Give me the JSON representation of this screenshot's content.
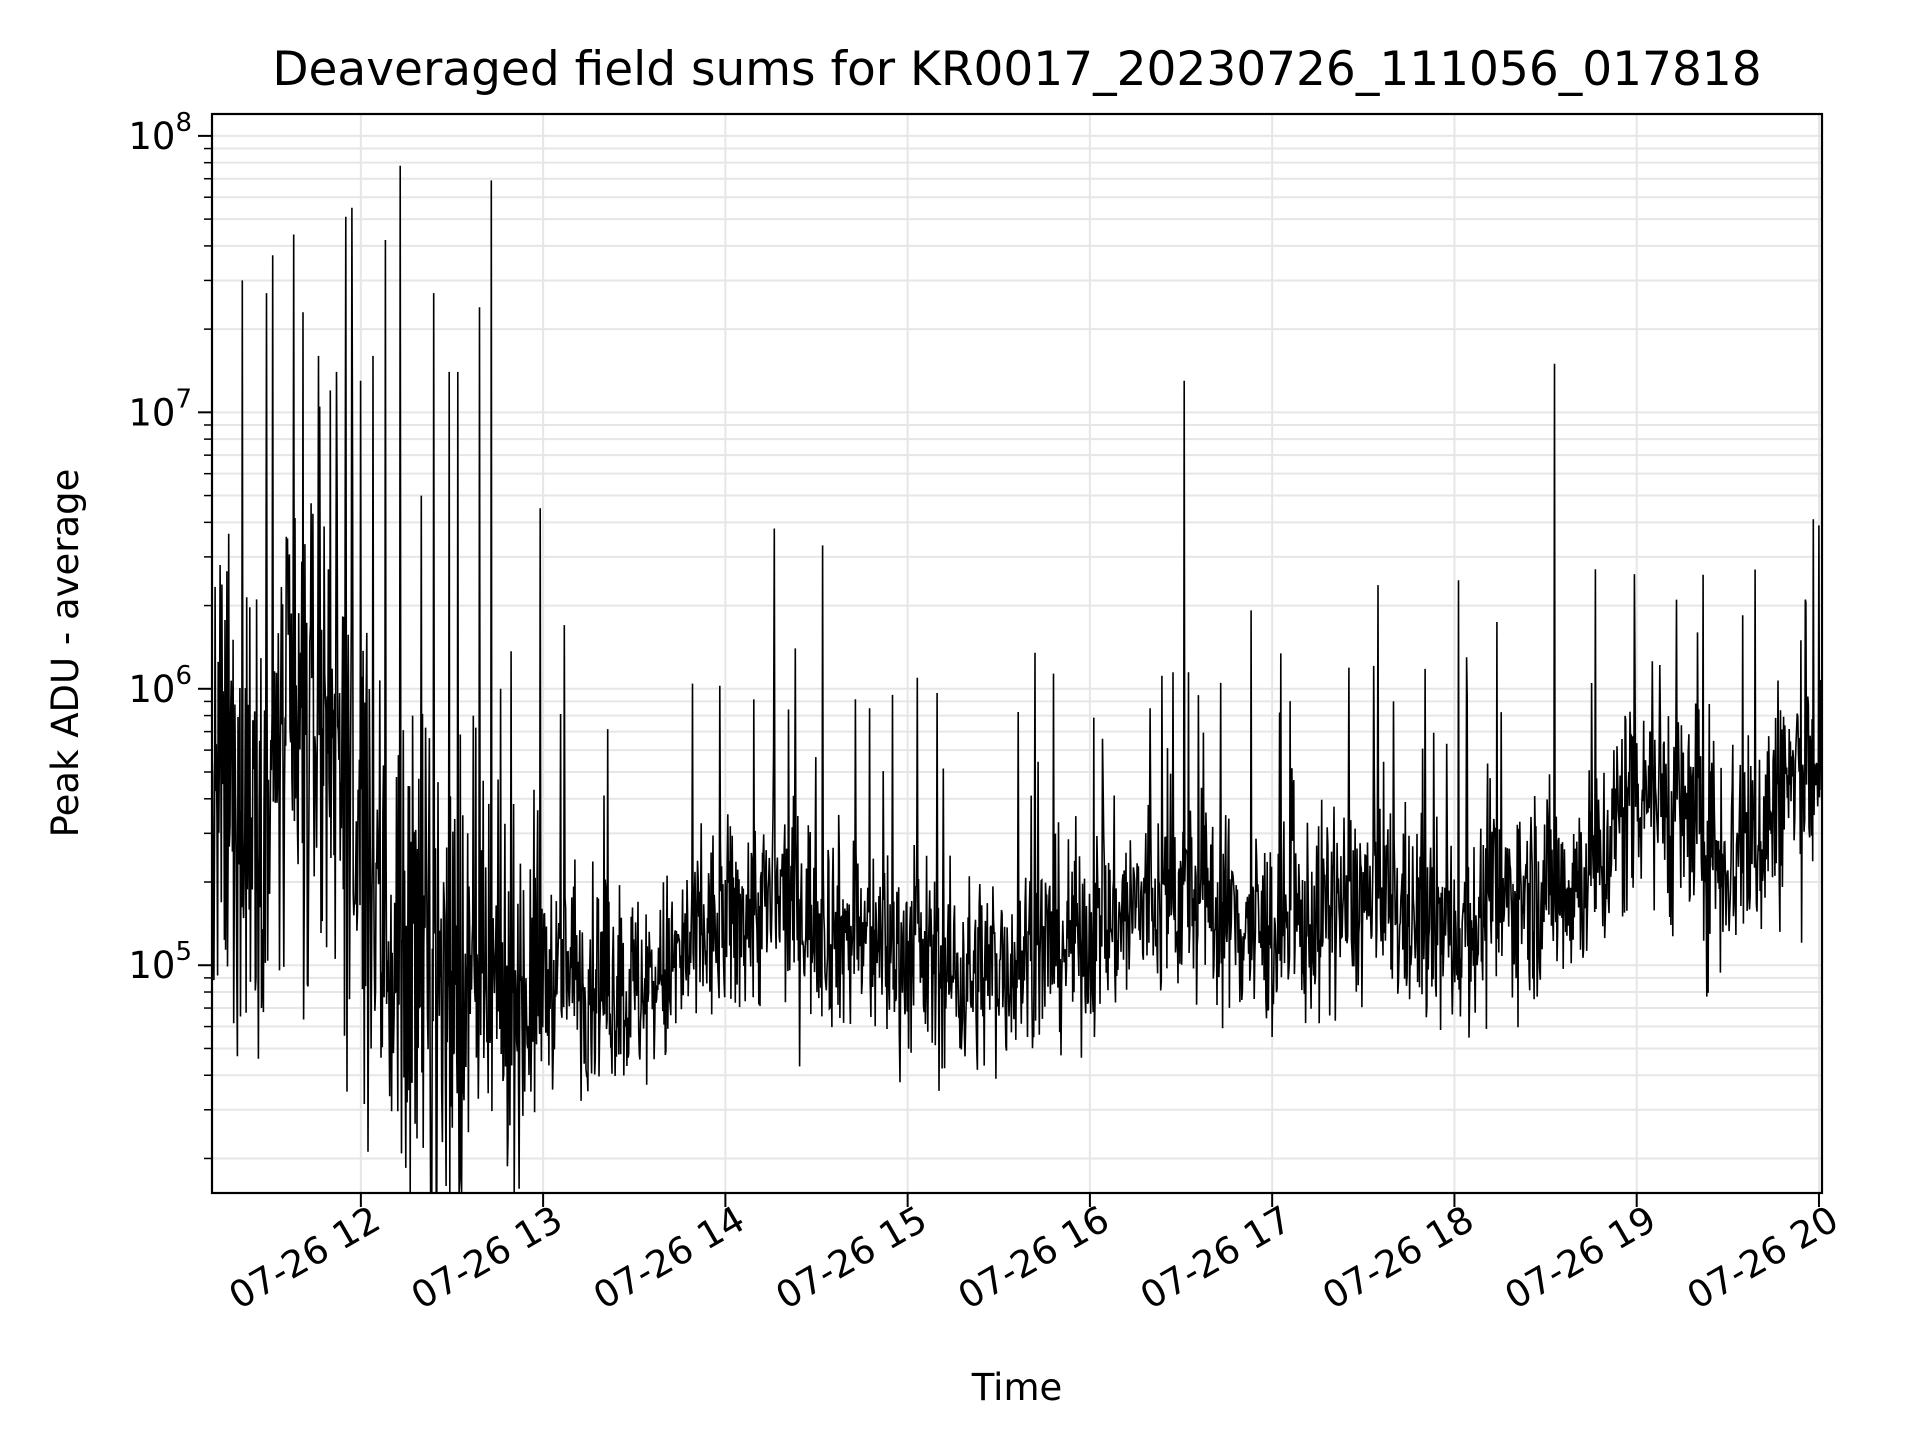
{
  "chart_data": {
    "type": "line",
    "title": "Deaveraged field sums for KR0017_20230726_111056_017818",
    "xlabel": "Time",
    "ylabel": "Peak ADU - average",
    "y_scale": "log",
    "ylim": [
      15000,
      120000000
    ],
    "xlim": [
      "2023-07-26 11:11",
      "2023-07-26 20:01"
    ],
    "grid": true,
    "line_color": "#000000",
    "grid_color": "#e6e6e6",
    "x_ticks": [
      {
        "value": "2023-07-26 12:00",
        "label": "07-26 12"
      },
      {
        "value": "2023-07-26 13:00",
        "label": "07-26 13"
      },
      {
        "value": "2023-07-26 14:00",
        "label": "07-26 14"
      },
      {
        "value": "2023-07-26 15:00",
        "label": "07-26 15"
      },
      {
        "value": "2023-07-26 16:00",
        "label": "07-26 16"
      },
      {
        "value": "2023-07-26 17:00",
        "label": "07-26 17"
      },
      {
        "value": "2023-07-26 18:00",
        "label": "07-26 18"
      },
      {
        "value": "2023-07-26 19:00",
        "label": "07-26 19"
      },
      {
        "value": "2023-07-26 20:00",
        "label": "07-26 20"
      }
    ],
    "y_ticks": [
      {
        "value": 100000,
        "base": "10",
        "exp": "5"
      },
      {
        "value": 1000000,
        "base": "10",
        "exp": "6"
      },
      {
        "value": 10000000,
        "base": "10",
        "exp": "7"
      },
      {
        "value": 100000000,
        "base": "10",
        "exp": "8"
      }
    ],
    "series": [
      {
        "x": [
          "2023-07-26 11:11",
          "2023-07-26 11:15",
          "2023-07-26 11:20",
          "2023-07-26 11:25",
          "2023-07-26 11:30",
          "2023-07-26 11:35",
          "2023-07-26 11:40",
          "2023-07-26 11:45",
          "2023-07-26 11:50",
          "2023-07-26 11:55",
          "2023-07-26 12:00",
          "2023-07-26 12:05",
          "2023-07-26 12:10",
          "2023-07-26 12:15",
          "2023-07-26 12:20",
          "2023-07-26 12:25",
          "2023-07-26 12:30",
          "2023-07-26 12:35",
          "2023-07-26 12:40",
          "2023-07-26 12:45",
          "2023-07-26 12:50",
          "2023-07-26 12:55",
          "2023-07-26 13:00",
          "2023-07-26 13:10",
          "2023-07-26 13:20",
          "2023-07-26 13:30",
          "2023-07-26 13:40",
          "2023-07-26 13:50",
          "2023-07-26 14:00",
          "2023-07-26 14:10",
          "2023-07-26 14:20",
          "2023-07-26 14:30",
          "2023-07-26 14:40",
          "2023-07-26 14:50",
          "2023-07-26 15:00",
          "2023-07-26 15:10",
          "2023-07-26 15:20",
          "2023-07-26 15:30",
          "2023-07-26 15:40",
          "2023-07-26 15:50",
          "2023-07-26 16:00",
          "2023-07-26 16:10",
          "2023-07-26 16:20",
          "2023-07-26 16:30",
          "2023-07-26 16:40",
          "2023-07-26 16:50",
          "2023-07-26 17:00",
          "2023-07-26 17:10",
          "2023-07-26 17:20",
          "2023-07-26 17:30",
          "2023-07-26 17:40",
          "2023-07-26 17:50",
          "2023-07-26 18:00",
          "2023-07-26 18:10",
          "2023-07-26 18:20",
          "2023-07-26 18:30",
          "2023-07-26 18:40",
          "2023-07-26 18:50",
          "2023-07-26 19:00",
          "2023-07-26 19:10",
          "2023-07-26 19:20",
          "2023-07-26 19:30",
          "2023-07-26 19:40",
          "2023-07-26 19:50",
          "2023-07-26 20:00"
        ],
        "y": [
          300000,
          400000,
          300000,
          500000,
          400000,
          600000,
          500000,
          700000,
          800000,
          500000,
          200000,
          150000,
          120000,
          100000,
          90000,
          80000,
          75000,
          70000,
          70000,
          75000,
          80000,
          85000,
          90000,
          90000,
          85000,
          80000,
          90000,
          120000,
          140000,
          160000,
          170000,
          150000,
          130000,
          120000,
          110000,
          100000,
          90000,
          100000,
          110000,
          120000,
          130000,
          150000,
          170000,
          180000,
          170000,
          140000,
          130000,
          140000,
          160000,
          170000,
          160000,
          140000,
          130000,
          150000,
          180000,
          190000,
          200000,
          250000,
          500000,
          400000,
          300000,
          250000,
          300000,
          450000,
          550000
        ],
        "spikes": [
          {
            "x": "2023-07-26 11:21",
            "y": 30000000
          },
          {
            "x": "2023-07-26 11:29",
            "y": 27000000
          },
          {
            "x": "2023-07-26 11:31",
            "y": 37000000
          },
          {
            "x": "2023-07-26 11:38",
            "y": 44000000
          },
          {
            "x": "2023-07-26 11:41",
            "y": 23000000
          },
          {
            "x": "2023-07-26 11:46",
            "y": 16000000
          },
          {
            "x": "2023-07-26 11:50",
            "y": 12000000
          },
          {
            "x": "2023-07-26 11:52",
            "y": 14000000
          },
          {
            "x": "2023-07-26 11:55",
            "y": 51000000
          },
          {
            "x": "2023-07-26 11:57",
            "y": 55000000
          },
          {
            "x": "2023-07-26 12:00",
            "y": 13000000
          },
          {
            "x": "2023-07-26 12:04",
            "y": 16000000
          },
          {
            "x": "2023-07-26 12:08",
            "y": 42000000
          },
          {
            "x": "2023-07-26 12:13",
            "y": 78000000
          },
          {
            "x": "2023-07-26 12:17",
            "y": 800000
          },
          {
            "x": "2023-07-26 12:20",
            "y": 5000000
          },
          {
            "x": "2023-07-26 12:24",
            "y": 27000000
          },
          {
            "x": "2023-07-26 12:29",
            "y": 14000000
          },
          {
            "x": "2023-07-26 12:32",
            "y": 14000000
          },
          {
            "x": "2023-07-26 12:37",
            "y": 800000
          },
          {
            "x": "2023-07-26 12:39",
            "y": 24000000
          },
          {
            "x": "2023-07-26 12:43",
            "y": 69000000
          },
          {
            "x": "2023-07-26 12:46",
            "y": 1000000
          },
          {
            "x": "2023-07-26 12:59",
            "y": 4500000
          },
          {
            "x": "2023-07-26 13:07",
            "y": 1700000
          },
          {
            "x": "2023-07-26 14:16",
            "y": 3800000
          },
          {
            "x": "2023-07-26 14:23",
            "y": 1400000
          },
          {
            "x": "2023-07-26 14:32",
            "y": 3300000
          },
          {
            "x": "2023-07-26 14:55",
            "y": 950000
          },
          {
            "x": "2023-07-26 15:42",
            "y": 1350000
          },
          {
            "x": "2023-07-26 16:31",
            "y": 13000000
          },
          {
            "x": "2023-07-26 16:43",
            "y": 1050000
          },
          {
            "x": "2023-07-26 17:40",
            "y": 900000
          },
          {
            "x": "2023-07-26 18:04",
            "y": 1300000
          },
          {
            "x": "2023-07-26 18:33",
            "y": 15000000
          },
          {
            "x": "2023-07-26 19:20",
            "y": 1600000
          },
          {
            "x": "2023-07-26 19:39",
            "y": 2700000
          },
          {
            "x": "2023-07-26 20:00",
            "y": 3900000
          }
        ]
      }
    ]
  }
}
